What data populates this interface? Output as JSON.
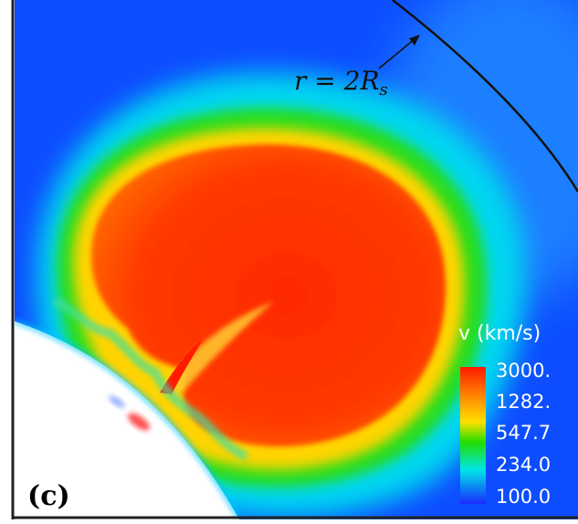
{
  "figure": {
    "panel_label": "(c)",
    "annotation": "r = 2R",
    "annotation_sub": "s",
    "colorbar": {
      "title": "v (km/s)",
      "tick_labels": [
        "3000.",
        "1282.",
        "547.7",
        "234.0",
        "100.0"
      ],
      "values": [
        3000,
        1282,
        547.7,
        234,
        100
      ],
      "scale": "log",
      "colors": [
        "#ff1a00",
        "#ffb400",
        "#22dd00",
        "#00e6e6",
        "#1a2bff"
      ]
    },
    "colors": {
      "background": "#0d4dff",
      "sun": "#ffffff",
      "boundary_line": "#111111",
      "frame": "#222222"
    }
  }
}
